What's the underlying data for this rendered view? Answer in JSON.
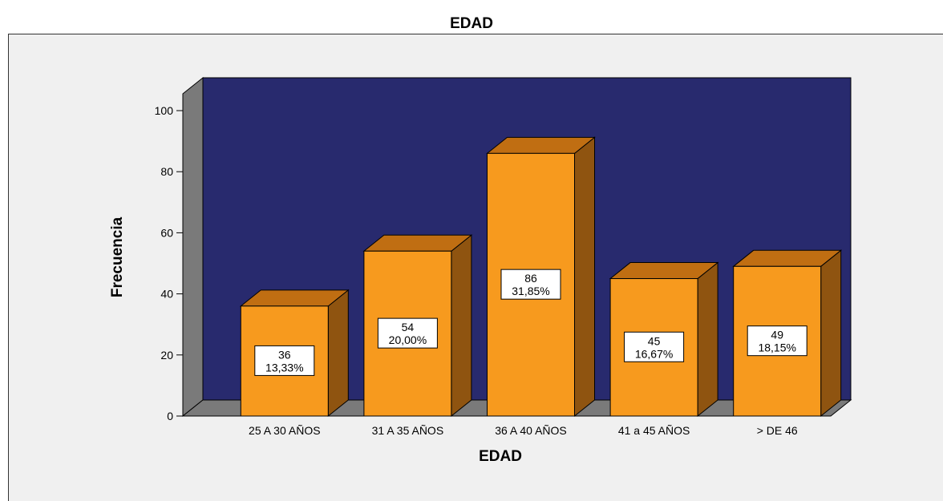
{
  "chart_data": {
    "type": "bar",
    "title": "EDAD",
    "xlabel": "EDAD",
    "ylabel": "Frecuencia",
    "categories": [
      "25 A 30 AÑOS",
      "31 A 35 AÑOS",
      "36 A 40 AÑOS",
      "41 a 45 AÑOS",
      "> DE 46"
    ],
    "values": [
      36,
      54,
      86,
      45,
      49
    ],
    "percent_labels": [
      "13,33%",
      "20,00%",
      "31,85%",
      "16,67%",
      "18,15%"
    ],
    "ylim": [
      0,
      100
    ],
    "yticks": [
      0,
      20,
      40,
      60,
      80,
      100
    ],
    "grid": false,
    "three_d": true,
    "colors": {
      "bar_front": "#f79a1e",
      "bar_top": "#c06e12",
      "bar_side": "#8f5410",
      "back_wall": "#282a6e",
      "side_wall": "#7a7a7a",
      "floor": "#7a7a7a",
      "frame_bg": "#f0f0f0"
    }
  }
}
